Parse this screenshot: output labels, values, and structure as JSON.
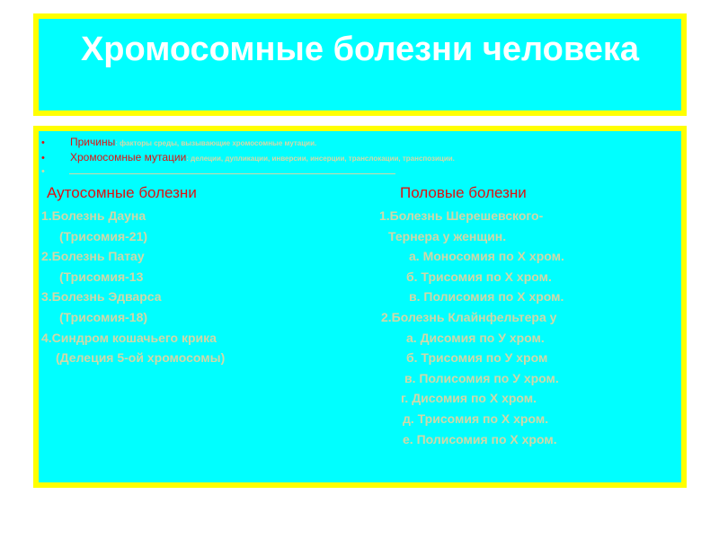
{
  "title": "Хромосомные болезни человека",
  "bullets": [
    {
      "label": "Причины",
      "text": ": факторы среды, вызывающие хромосомные  мутации."
    },
    {
      "label": "Хромосомные мутации",
      "text": ": делеции, дупликации, инверсии, инсерции, транслокации, транспозиции."
    }
  ],
  "colors": {
    "background": "#00ffff",
    "border": "#ffff00",
    "heading": "#e01010",
    "text": "#d0d8a8"
  },
  "left": {
    "heading": "Аутосомные  болезни",
    "items": [
      "1.Болезнь Дауна",
      "(Трисомия-21)",
      "2.Болезнь Патау",
      "(Трисомия-13",
      "3.Болезнь Эдварса",
      "(Трисомия-18)",
      "4.Синдром кошачьего крика",
      "(Делеция 5-ой хромосомы)"
    ]
  },
  "right": {
    "heading": "Половые болезни",
    "items": [
      "1.Болезнь Шерешевского-",
      "Тернера у женщин.",
      "а. Моносомия по X хром.",
      "б. Трисомия по X хром.",
      "в. Полисомия по X хром.",
      "2.Болезнь Клайнфельтера у",
      "а. Дисомия по У хром.",
      "б. Трисомия по У хром",
      "в. Полисомия по У хром.",
      "г. Дисомия по X хром.",
      "д. Трисомия по X хром.",
      "е. Полисомия по X хром."
    ]
  }
}
